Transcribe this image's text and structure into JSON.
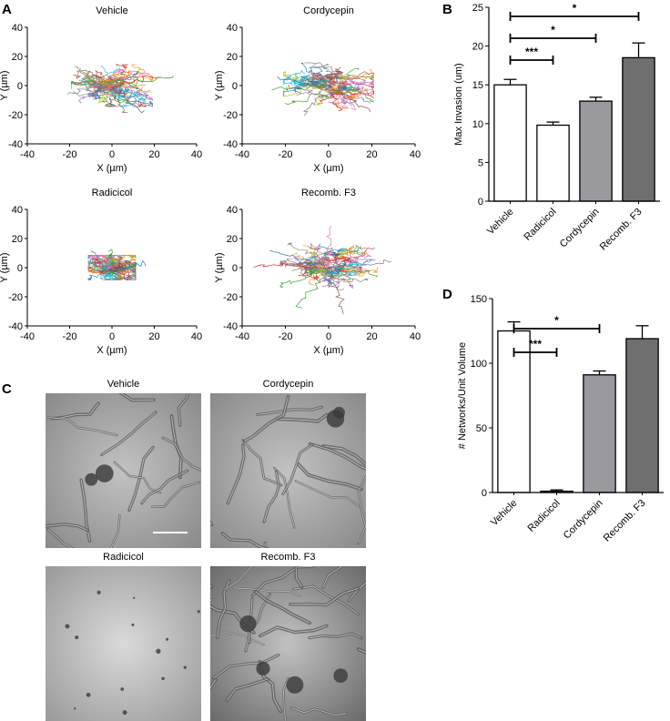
{
  "panel_letters": {
    "a": "A",
    "b": "B",
    "c": "C",
    "d": "D"
  },
  "panel_c": {
    "images": [
      {
        "title": "Vehicle"
      },
      {
        "title": "Cordycepin"
      },
      {
        "title": "Radicicol"
      },
      {
        "title": "Recomb. F3"
      }
    ]
  },
  "chart_data": [
    {
      "type": "scatter",
      "panel": "A",
      "subplots": [
        {
          "title": "Vehicle",
          "spread": 12
        },
        {
          "title": "Cordycepin",
          "spread": 13
        },
        {
          "title": "Radicicol",
          "spread": 7
        },
        {
          "title": "Recomb. F3",
          "spread": 14
        }
      ],
      "xlabel": "X (µm)",
      "ylabel": "Y (µm)",
      "xlim": [
        -40,
        40
      ],
      "ylim": [
        -40,
        40
      ],
      "xticks": [
        -40,
        -20,
        0,
        20,
        40
      ],
      "yticks": [
        -40,
        -20,
        0,
        20,
        40
      ],
      "colors": [
        "#1f77b4",
        "#ff7f0e",
        "#2ca02c",
        "#d62728",
        "#9467bd",
        "#8c564b",
        "#e377c2",
        "#17becf",
        "#bcbd22",
        "#7f7f7f"
      ]
    },
    {
      "type": "bar",
      "panel": "B",
      "categories": [
        "Vehicle",
        "Radicicol",
        "Cordycepin",
        "Recomb. F3"
      ],
      "values": [
        15.0,
        9.8,
        12.9,
        18.5
      ],
      "errors": [
        0.7,
        0.4,
        0.5,
        1.9
      ],
      "bar_colors": [
        "#ffffff",
        "#ffffff",
        "#9a9a9e",
        "#6f6f6f"
      ],
      "ylabel": "Max Invasion (um)",
      "ylim": [
        0,
        25
      ],
      "yticks": [
        0,
        5,
        10,
        15,
        20,
        25
      ],
      "significance": [
        {
          "from": 0,
          "to": 1,
          "label": "***"
        },
        {
          "from": 0,
          "to": 2,
          "label": "*"
        },
        {
          "from": 0,
          "to": 3,
          "label": "*"
        }
      ]
    },
    {
      "type": "bar",
      "panel": "D",
      "categories": [
        "Vehicle",
        "Radicicol",
        "Cordycepin",
        "Recomb. F3"
      ],
      "values": [
        125,
        1,
        91,
        119
      ],
      "errors": [
        7,
        1,
        3,
        10
      ],
      "bar_colors": [
        "#ffffff",
        "#ffffff",
        "#9a9a9e",
        "#6f6f6f"
      ],
      "ylabel": "# Networks/Unit Volume",
      "ylim": [
        0,
        150
      ],
      "yticks": [
        0,
        50,
        100,
        150
      ],
      "significance": [
        {
          "from": 0,
          "to": 1,
          "label": "***"
        },
        {
          "from": 0,
          "to": 2,
          "label": "*"
        }
      ]
    }
  ]
}
